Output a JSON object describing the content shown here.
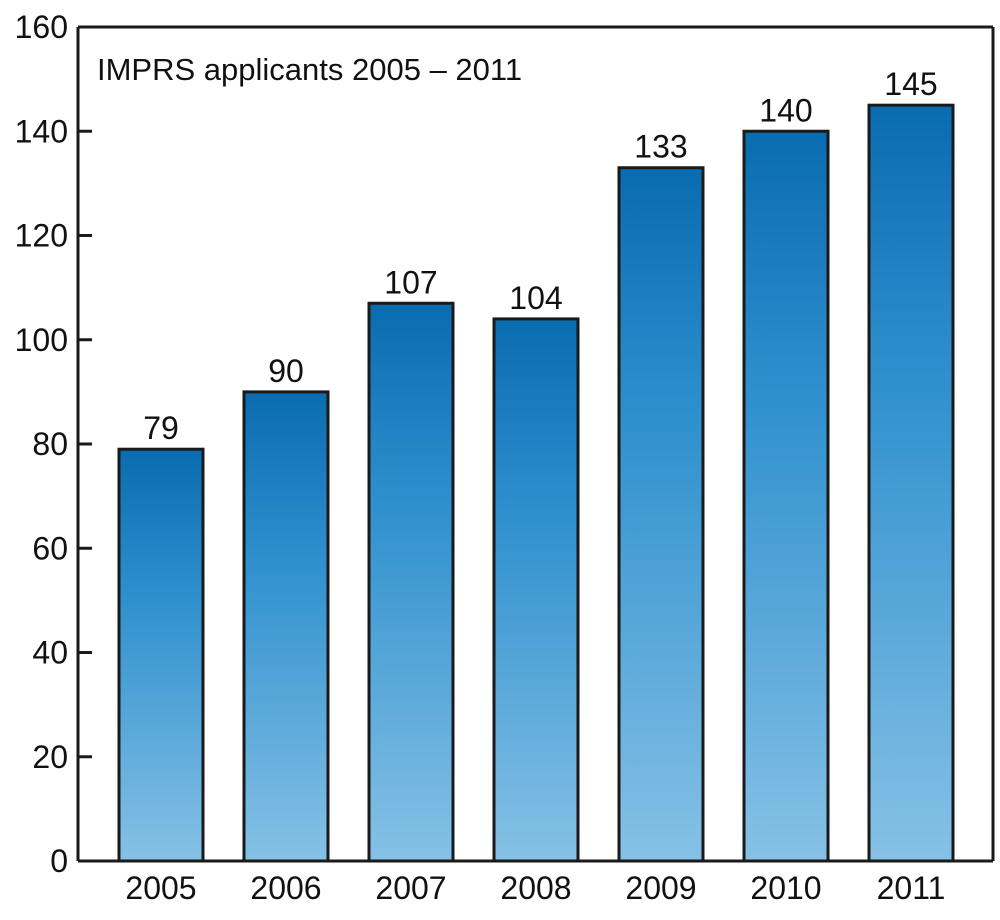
{
  "chart_data": {
    "type": "bar",
    "title": "IMPRS applicants 2005 – 2011",
    "xlabel": "",
    "ylabel": "",
    "categories": [
      "2005",
      "2006",
      "2007",
      "2008",
      "2009",
      "2010",
      "2011"
    ],
    "values": [
      79,
      90,
      107,
      104,
      133,
      140,
      145
    ],
    "ylim": [
      0,
      160
    ],
    "yticks": [
      "0",
      "20",
      "40",
      "60",
      "80",
      "100",
      "120",
      "140",
      "160"
    ],
    "data_labels": [
      "79",
      "90",
      "107",
      "104",
      "133",
      "140",
      "145"
    ],
    "grid": false,
    "legend": "none",
    "colors": {
      "bar_top": "#0a6cb0",
      "bar_mid": "#2d8fcd",
      "bar_bottom": "#86c1e6",
      "bar_stroke": "#1a1a1a",
      "axis": "#1a1a1a"
    }
  }
}
